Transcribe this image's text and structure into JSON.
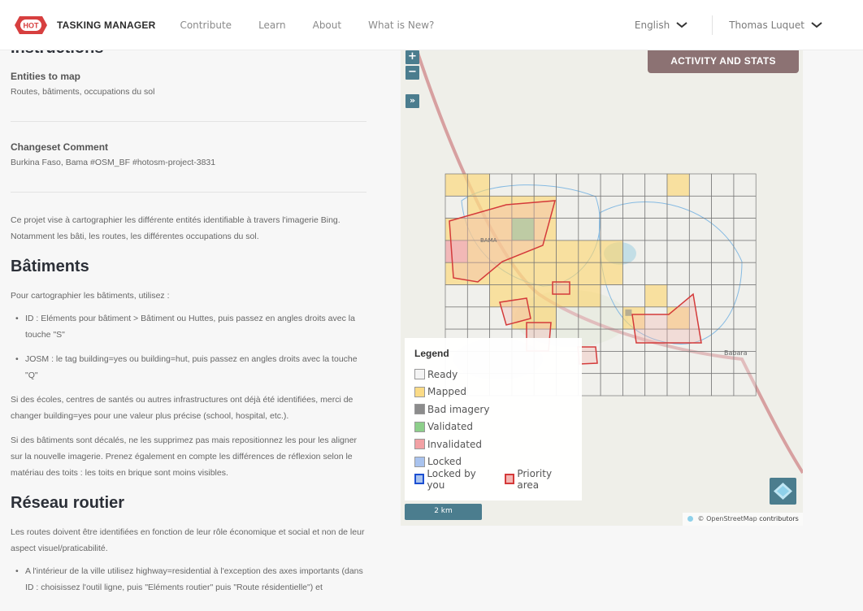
{
  "header": {
    "logo_badge": "HOT",
    "app_title": "TASKING MANAGER",
    "nav": [
      "Contribute",
      "Learn",
      "About",
      "What is New?"
    ],
    "language": "English",
    "user": "Thomas Luquet"
  },
  "instructions": {
    "heading": "Instructions",
    "entities_label": "Entities to map",
    "entities_value": "Routes, bâtiments, occupations du sol",
    "changeset_label": "Changeset Comment",
    "changeset_value": "Burkina Faso, Bama #OSM_BF #hotosm-project-3831",
    "intro_line1": "Ce projet vise à cartographier les différente entités identifiable à travers l'imagerie Bing.",
    "intro_line2": "Notamment les bâti, les routes, les différentes occupations du sol.",
    "batiments_heading": "Bâtiments",
    "batiments_intro": "Pour cartographier les bâtiments, utilisez :",
    "bullet_id": "ID : Eléments pour bâtiment > Bâtiment ou Huttes, puis passez en angles droits avec la touche \"S\"",
    "bullet_josm": "JOSM : le tag building=yes ou building=hut, puis passez en angles droits avec la touche \"Q\"",
    "para_ecoles": "Si des écoles, centres de santés ou autres infrastructures ont déjà été identifiées, merci de changer building=yes pour une valeur plus précise (school, hospital, etc.).",
    "para_decales": "Si des bâtiments sont décalés, ne les supprimez pas mais repositionnez les pour les aligner sur la nouvelle imagerie. Prenez également en compte les différences de réflexion selon le matériau des toits : les toits en brique sont moins visibles.",
    "reseau_heading": "Réseau routier",
    "reseau_intro": "Les routes doivent être identifiées en fonction de leur rôle économique et social et non de leur aspect visuel/praticabilité.",
    "bullet_ville": "A l'intérieur de la ville utilisez highway=residential à l'exception des axes importants (dans ID : choisissez l'outil ligne, puis \"Eléments routier\" puis \"Route résidentielle\") et"
  },
  "map": {
    "zoom_in": "+",
    "zoom_out": "−",
    "expand": "»",
    "activity_button": "ACTIVITY AND STATS",
    "place_bama": "BAMA",
    "place_babara": "Babara",
    "scale": "2 km",
    "attribution_prefix": "© OpenStreetMap",
    "attribution_link": "contributors",
    "legend": {
      "title": "Legend",
      "items": [
        {
          "label": "Ready",
          "color": "#f4f4f4"
        },
        {
          "label": "Mapped",
          "color": "#fbdb86"
        },
        {
          "label": "Bad imagery",
          "color": "#8c8c8c"
        },
        {
          "label": "Validated",
          "color": "#8dcf8a"
        },
        {
          "label": "Invalidated",
          "color": "#f2a1a4"
        },
        {
          "label": "Locked",
          "color": "#a9c3ee"
        },
        {
          "label": "Locked by you",
          "color": "#a9c3ee"
        }
      ],
      "priority": "Priority area"
    }
  }
}
